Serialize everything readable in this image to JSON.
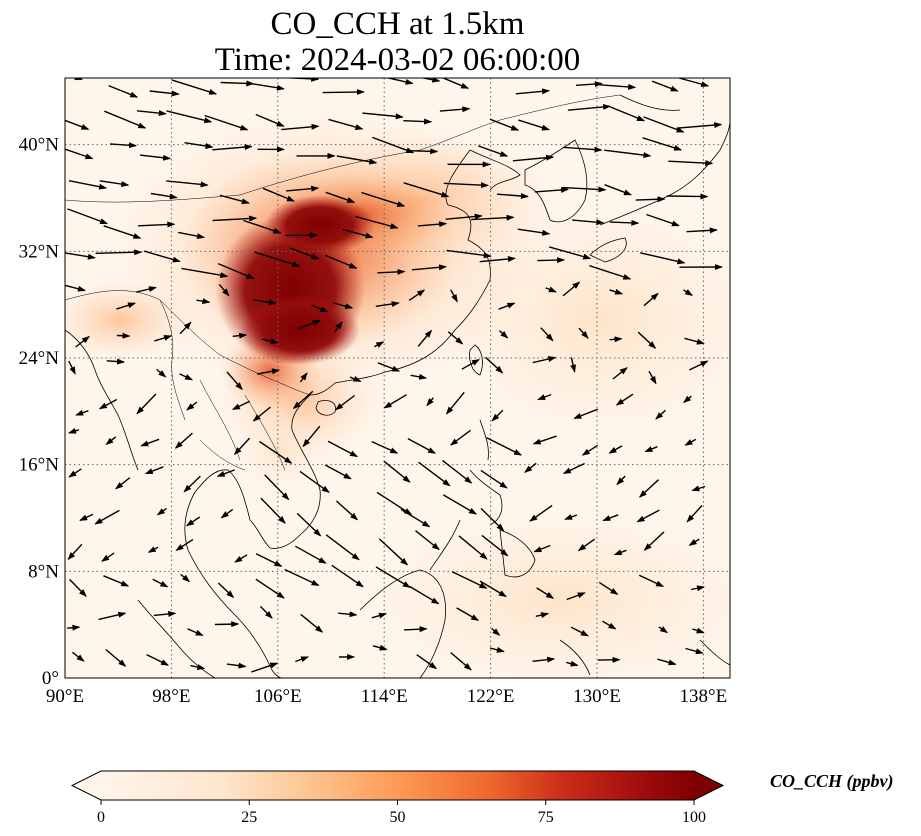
{
  "title_line1": "CO_CCH at 1.5km",
  "title_line2": "Time: 2024-03-02 06:00:00",
  "map": {
    "lon_range": [
      90,
      140
    ],
    "lat_range": [
      0,
      45
    ],
    "lon_ticks": [
      "90°E",
      "98°E",
      "106°E",
      "114°E",
      "122°E",
      "130°E",
      "138°E"
    ],
    "lat_ticks": [
      "0°",
      "8°N",
      "16°N",
      "24°N",
      "32°N",
      "40°N"
    ],
    "gridlines": true
  },
  "colorbar": {
    "title": "CO_CCH (ppbv)",
    "tick_labels": [
      "0",
      "25",
      "50",
      "75",
      "100"
    ],
    "range": [
      0,
      100
    ],
    "extend": "both",
    "colors": [
      "#fff5eb",
      "#fdd49e",
      "#fdae6b",
      "#f16913",
      "#d7301f",
      "#a50f15",
      "#7f0000"
    ]
  },
  "colors": {
    "background": "#fff5eb",
    "coastline": "#000000",
    "gridline": "#666666",
    "arrow": "#000000"
  }
}
